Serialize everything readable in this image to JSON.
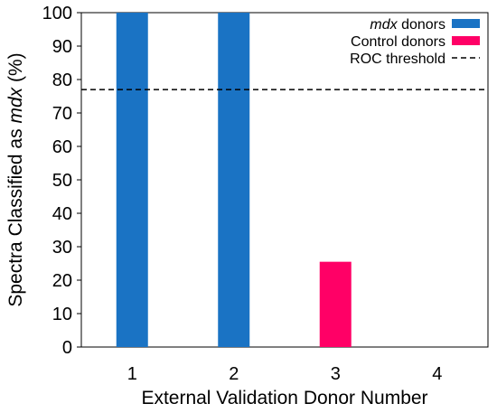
{
  "chart_data": {
    "type": "bar",
    "title": "",
    "xlabel": "External Validation Donor Number",
    "ylabel": "Spectra Classified as mdx (%)",
    "ylabel_parts": [
      "Spectra Classified as ",
      "mdx",
      " (%)"
    ],
    "categories": [
      "1",
      "2",
      "3",
      "4"
    ],
    "ylim": [
      0,
      100
    ],
    "yticks": [
      0,
      10,
      20,
      30,
      40,
      50,
      60,
      70,
      80,
      90,
      100
    ],
    "series": [
      {
        "name": "mdx donors",
        "name_parts": [
          "mdx",
          " donors"
        ],
        "color": "#1a73c4",
        "values": [
          100,
          100,
          0,
          0
        ]
      },
      {
        "name": "Control donors",
        "name_parts": [
          "Control donors"
        ],
        "color": "#ff0066",
        "values": [
          0,
          0,
          25.5,
          0
        ]
      }
    ],
    "threshold": {
      "name": "ROC threshold",
      "value": 77,
      "style": "dashed",
      "color": "#000000"
    },
    "grid": false,
    "legend_position": "top-right"
  }
}
